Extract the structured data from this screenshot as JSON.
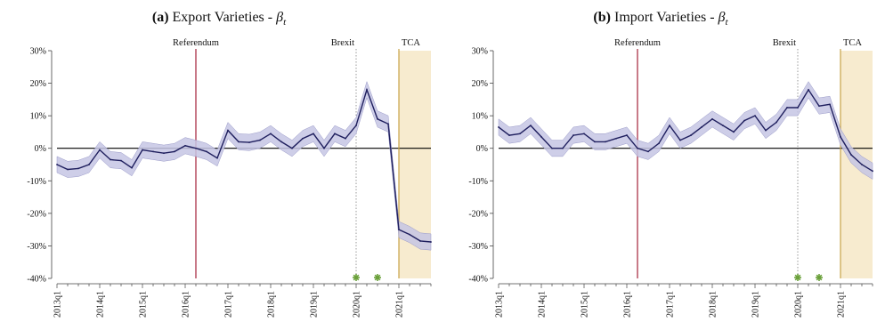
{
  "chart_data": [
    {
      "type": "line",
      "title_prefix": "(a)",
      "title_main": "Export Varieties - ",
      "title_symbol": "β",
      "title_sub": "t",
      "x": [
        "2013q1",
        "2013q2",
        "2013q3",
        "2013q4",
        "2014q1",
        "2014q2",
        "2014q3",
        "2014q4",
        "2015q1",
        "2015q2",
        "2015q3",
        "2015q4",
        "2016q1",
        "2016q2",
        "2016q3",
        "2016q4",
        "2017q1",
        "2017q2",
        "2017q3",
        "2017q4",
        "2018q1",
        "2018q2",
        "2018q3",
        "2018q4",
        "2019q1",
        "2019q2",
        "2019q3",
        "2019q4",
        "2020q1",
        "2020q2",
        "2020q3",
        "2020q4",
        "2021q1",
        "2021q2",
        "2021q3",
        "2021q4"
      ],
      "x_tick_labels": [
        "2013q1",
        "2014q1",
        "2015q1",
        "2016q1",
        "2017q1",
        "2018q1",
        "2019q1",
        "2020q1",
        "2021q1"
      ],
      "y": [
        -5,
        -6.5,
        -6.2,
        -5,
        -0.5,
        -3.5,
        -3.8,
        -6,
        -0.5,
        -1,
        -1.5,
        -1,
        0.8,
        0,
        -1,
        -3,
        5.5,
        2,
        1.8,
        2.5,
        4.5,
        2,
        0,
        3,
        4.5,
        0,
        4.5,
        3,
        7,
        18,
        9,
        7.5,
        -25,
        -26.5,
        -28.5,
        -28.8
      ],
      "ci_half_width": 2.5,
      "y_ticks": [
        30,
        20,
        10,
        0,
        -10,
        -20,
        -30,
        -40
      ],
      "y_tick_labels": [
        "30%",
        "20%",
        "10%",
        "0%",
        "-10%",
        "-20%",
        "-30%",
        "-40%"
      ],
      "ylim": [
        -40,
        30
      ],
      "events": [
        {
          "label": "Referendum",
          "x": "2016q2",
          "style": "solid",
          "color": "#a3213a"
        },
        {
          "label": "Brexit",
          "x": "2020q1",
          "style": "dotted",
          "color": "#9a9a9a"
        },
        {
          "label": "TCA",
          "x": "2021q1",
          "style": "solid",
          "color": "#c8a348"
        }
      ],
      "shaded_region": {
        "x_start": "2021q1",
        "color": "#f7ebcf"
      },
      "markers": [
        {
          "x": "2020q1",
          "y": -40,
          "color": "#6aa03a"
        },
        {
          "x": "2020q3",
          "y": -40,
          "color": "#6aa03a"
        }
      ],
      "line_color": "#1f1f5e",
      "band_color": "#c6c6e4",
      "zero_line": true
    },
    {
      "type": "line",
      "title_prefix": "(b)",
      "title_main": "Import Varieties - ",
      "title_symbol": "β",
      "title_sub": "t",
      "x": [
        "2013q1",
        "2013q2",
        "2013q3",
        "2013q4",
        "2014q1",
        "2014q2",
        "2014q3",
        "2014q4",
        "2015q1",
        "2015q2",
        "2015q3",
        "2015q4",
        "2016q1",
        "2016q2",
        "2016q3",
        "2016q4",
        "2017q1",
        "2017q2",
        "2017q3",
        "2017q4",
        "2018q1",
        "2018q2",
        "2018q3",
        "2018q4",
        "2019q1",
        "2019q2",
        "2019q3",
        "2019q4",
        "2020q1",
        "2020q2",
        "2020q3",
        "2020q4",
        "2021q1",
        "2021q2",
        "2021q3",
        "2021q4"
      ],
      "x_tick_labels": [
        "2013q1",
        "2014q1",
        "2015q1",
        "2016q1",
        "2017q1",
        "2018q1",
        "2019q1",
        "2020q1",
        "2021q1"
      ],
      "y": [
        6.5,
        4,
        4.5,
        7,
        3.5,
        0,
        0,
        4,
        4.5,
        2,
        2,
        3,
        4,
        0,
        -1,
        1.5,
        7,
        2.5,
        4,
        6.5,
        9,
        7,
        5,
        8.5,
        10,
        5.5,
        8,
        12.5,
        12.5,
        18,
        13,
        13.5,
        3.5,
        -2,
        -5,
        -7
      ],
      "ci_half_width": 2.5,
      "y_ticks": [
        30,
        20,
        10,
        0,
        -10,
        -20,
        -30,
        -40
      ],
      "y_tick_labels": [
        "30%",
        "20%",
        "10%",
        "0%",
        "-10%",
        "-20%",
        "-30%",
        "-40%"
      ],
      "ylim": [
        -40,
        30
      ],
      "events": [
        {
          "label": "Referendum",
          "x": "2016q2",
          "style": "solid",
          "color": "#a3213a"
        },
        {
          "label": "Brexit",
          "x": "2020q1",
          "style": "dotted",
          "color": "#9a9a9a"
        },
        {
          "label": "TCA",
          "x": "2021q1",
          "style": "solid",
          "color": "#c8a348"
        }
      ],
      "shaded_region": {
        "x_start": "2021q1",
        "color": "#f7ebcf"
      },
      "markers": [
        {
          "x": "2020q1",
          "y": -40,
          "color": "#6aa03a"
        },
        {
          "x": "2020q3",
          "y": -40,
          "color": "#6aa03a"
        }
      ],
      "line_color": "#1f1f5e",
      "band_color": "#c6c6e4",
      "zero_line": true
    }
  ]
}
